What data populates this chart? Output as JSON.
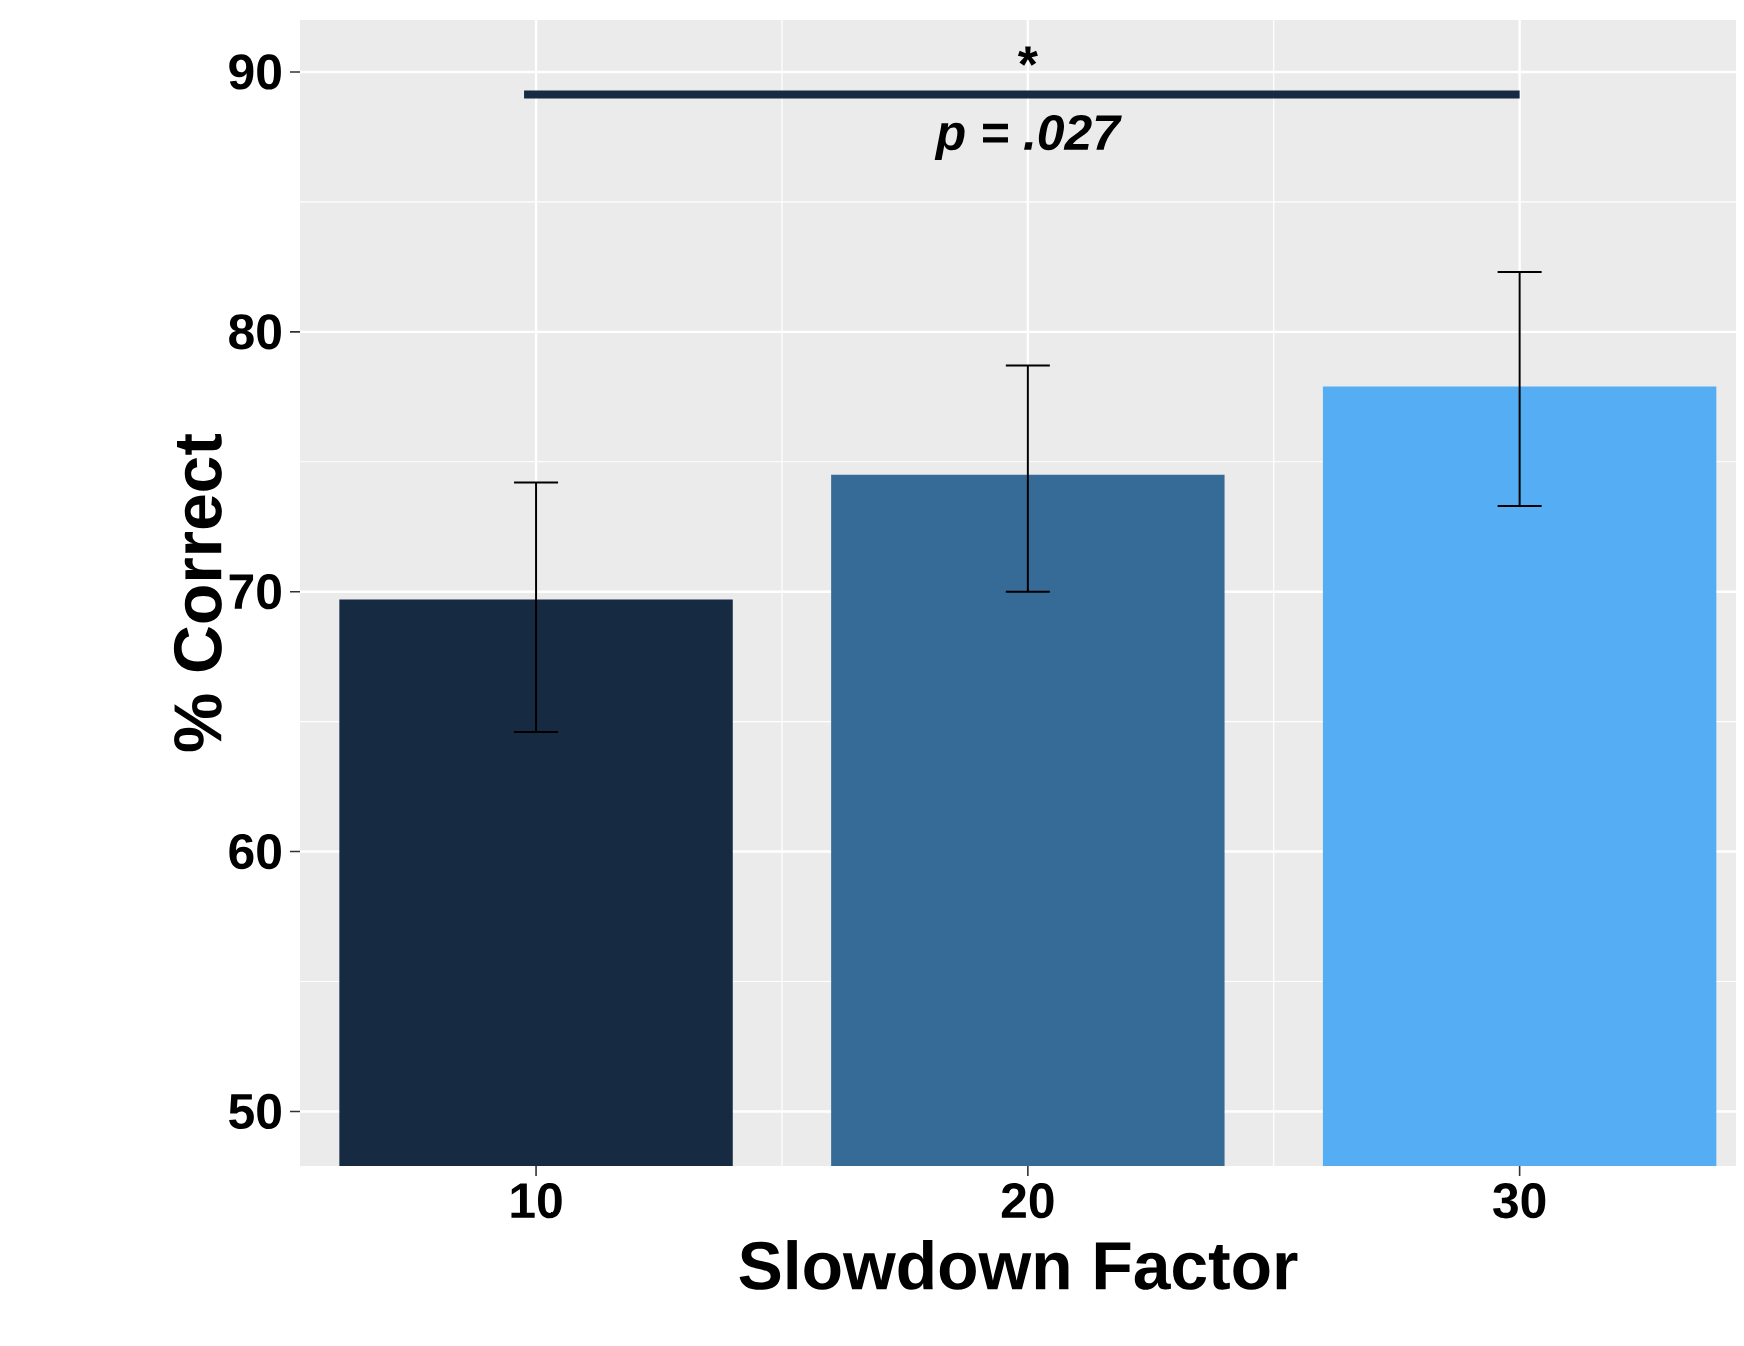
{
  "chart_data": {
    "type": "bar",
    "xlabel": "Slowdown Factor",
    "ylabel": "% Correct",
    "categories": [
      "10",
      "20",
      "30"
    ],
    "values": [
      69.7,
      74.5,
      77.9
    ],
    "colors": [
      "#162a42",
      "#366b98",
      "#55aef4"
    ],
    "errors": [
      [
        64.6,
        74.2
      ],
      [
        70.0,
        78.7
      ],
      [
        73.3,
        82.3
      ]
    ],
    "ylim": [
      47.9,
      92.0
    ],
    "yticks": [
      50,
      60,
      70,
      80,
      90
    ],
    "grid": true,
    "annotations": [
      "*",
      "p = .027"
    ]
  }
}
